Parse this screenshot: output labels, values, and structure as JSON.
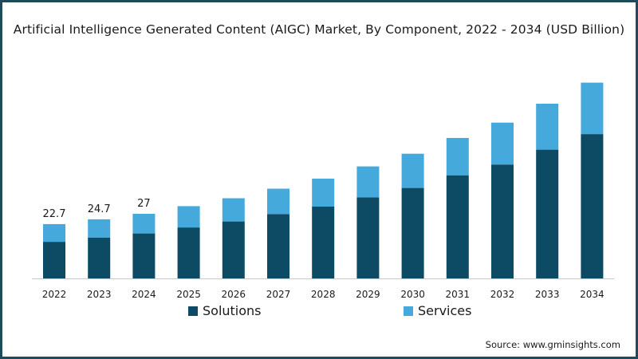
{
  "title": "Artificial Intelligence Generated Content (AIGC) Market, By Component, 2022 - 2034 (USD Billion)",
  "source": "Source: www.gminsights.com",
  "colors": {
    "solutions": "#0d4a63",
    "services": "#45a9dc",
    "border": "#1e4a5c"
  },
  "chart_data": {
    "type": "bar",
    "stacked": true,
    "title": "Artificial Intelligence Generated Content (AIGC) Market, By Component, 2022 - 2034 (USD Billion)",
    "xlabel": "",
    "ylabel": "USD Billion",
    "ylim": [
      0,
      95
    ],
    "grid": false,
    "legend": "bottom",
    "categories": [
      "2022",
      "2023",
      "2024",
      "2025",
      "2026",
      "2027",
      "2028",
      "2029",
      "2030",
      "2031",
      "2032",
      "2033",
      "2034"
    ],
    "series": [
      {
        "name": "Solutions",
        "values": [
          15.3,
          17.0,
          18.8,
          21.3,
          23.8,
          26.9,
          30.0,
          33.9,
          37.8,
          43.1,
          47.6,
          53.8,
          60.3
        ]
      },
      {
        "name": "Services",
        "values": [
          7.4,
          7.7,
          8.2,
          8.9,
          9.7,
          10.6,
          11.7,
          12.9,
          14.3,
          15.6,
          17.5,
          19.2,
          21.5
        ]
      }
    ],
    "data_labels": [
      {
        "category": "2022",
        "text": "22.7"
      },
      {
        "category": "2023",
        "text": "24.7"
      },
      {
        "category": "2024",
        "text": "27"
      }
    ]
  }
}
